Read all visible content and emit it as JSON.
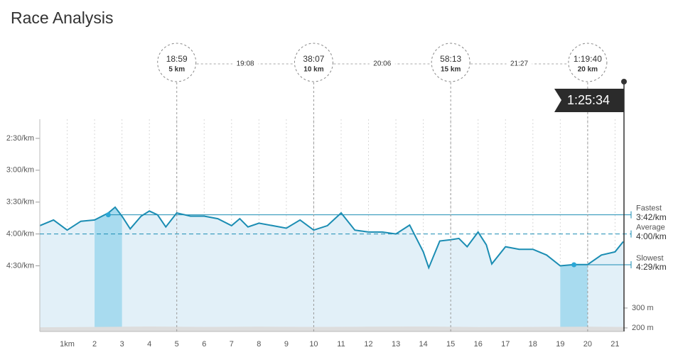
{
  "title": "Race Analysis",
  "chart_data": {
    "type": "line",
    "x": [
      0,
      0.5,
      1,
      1.5,
      2,
      2.5,
      2.75,
      3,
      3.3,
      3.7,
      4,
      4.3,
      4.6,
      5,
      5.5,
      6,
      6.5,
      7,
      7.3,
      7.6,
      8,
      8.5,
      9,
      9.5,
      10,
      10.5,
      11,
      11.5,
      12,
      12.5,
      13,
      13.5,
      14,
      14.2,
      14.6,
      15,
      15.3,
      15.6,
      16,
      16.3,
      16.5,
      17,
      17.5,
      18,
      18.5,
      19,
      19.5,
      20,
      20.5,
      21,
      21.3
    ],
    "series": [
      {
        "color": "#1b8db3",
        "values": [
          3.87,
          3.78,
          3.94,
          3.8,
          3.78,
          3.67,
          3.58,
          3.72,
          3.92,
          3.72,
          3.64,
          3.7,
          3.89,
          3.67,
          3.72,
          3.72,
          3.76,
          3.87,
          3.76,
          3.89,
          3.83,
          3.87,
          3.91,
          3.78,
          3.94,
          3.87,
          3.67,
          3.94,
          3.97,
          3.97,
          4,
          3.86,
          4.28,
          4.53,
          4.11,
          4.09,
          4.07,
          4.2,
          3.97,
          4.17,
          4.47,
          4.2,
          4.24,
          4.24,
          4.33,
          4.5,
          4.48,
          4.48,
          4.33,
          4.28,
          4.12
        ]
      }
    ],
    "elevation": {
      "color": "#dddddd",
      "axis": "y2",
      "x": [
        0,
        2,
        4,
        6,
        8,
        10,
        12,
        14,
        16,
        18,
        20,
        21.3
      ],
      "values": [
        203,
        205,
        207,
        205,
        206,
        205,
        206,
        207,
        204,
        205,
        206,
        205
      ]
    },
    "xlim": [
      0,
      21.3
    ],
    "xticks": [
      {
        "value": 1,
        "label": "1km"
      },
      2,
      3,
      4,
      5,
      6,
      7,
      8,
      9,
      10,
      11,
      12,
      13,
      14,
      15,
      16,
      17,
      18,
      19,
      20,
      21
    ],
    "ylim": [
      5.53,
      2.2
    ],
    "yticks": [
      {
        "value": 2.5,
        "label": "2:30/km"
      },
      {
        "value": 3,
        "label": "3:00/km"
      },
      {
        "value": 3.5,
        "label": "3:30/km"
      },
      {
        "value": 4,
        "label": "4:00/km"
      },
      {
        "value": 4.5,
        "label": "4:30/km"
      }
    ],
    "y2lim": [
      182,
      1250
    ],
    "y2ticks": [
      {
        "value": 300,
        "label": "300 m"
      },
      {
        "value": 200,
        "label": "200 m"
      }
    ],
    "reference_lines": [
      {
        "name": "Fastest",
        "value": 3.7,
        "value_label": "3:42/km",
        "from": 2.5,
        "style": "solid"
      },
      {
        "name": "Average",
        "value": 4,
        "value_label": "4:00/km",
        "from": 0,
        "style": "dashed"
      },
      {
        "name": "Slowest",
        "value": 4.4833,
        "value_label": "4:29/km",
        "from": 19.5,
        "style": "solid"
      }
    ],
    "highlights": [
      {
        "x": [
          2,
          3
        ],
        "marker": 2.5,
        "line": 0
      },
      {
        "x": [
          19,
          20
        ],
        "marker": 19.5,
        "line": 2
      }
    ],
    "splits": [
      {
        "time": "18:59",
        "distance": "5 km",
        "x": 5
      },
      {
        "time": "38:07",
        "distance": "10 km",
        "x": 10
      },
      {
        "time": "58:13",
        "distance": "15 km",
        "x": 15
      },
      {
        "time": "1:19:40",
        "distance": "20 km",
        "x": 20
      }
    ],
    "split_gaps": [
      "19:08",
      "20:06",
      "21:27"
    ],
    "finish": {
      "time": "1:25:34",
      "x": 21.3
    }
  }
}
